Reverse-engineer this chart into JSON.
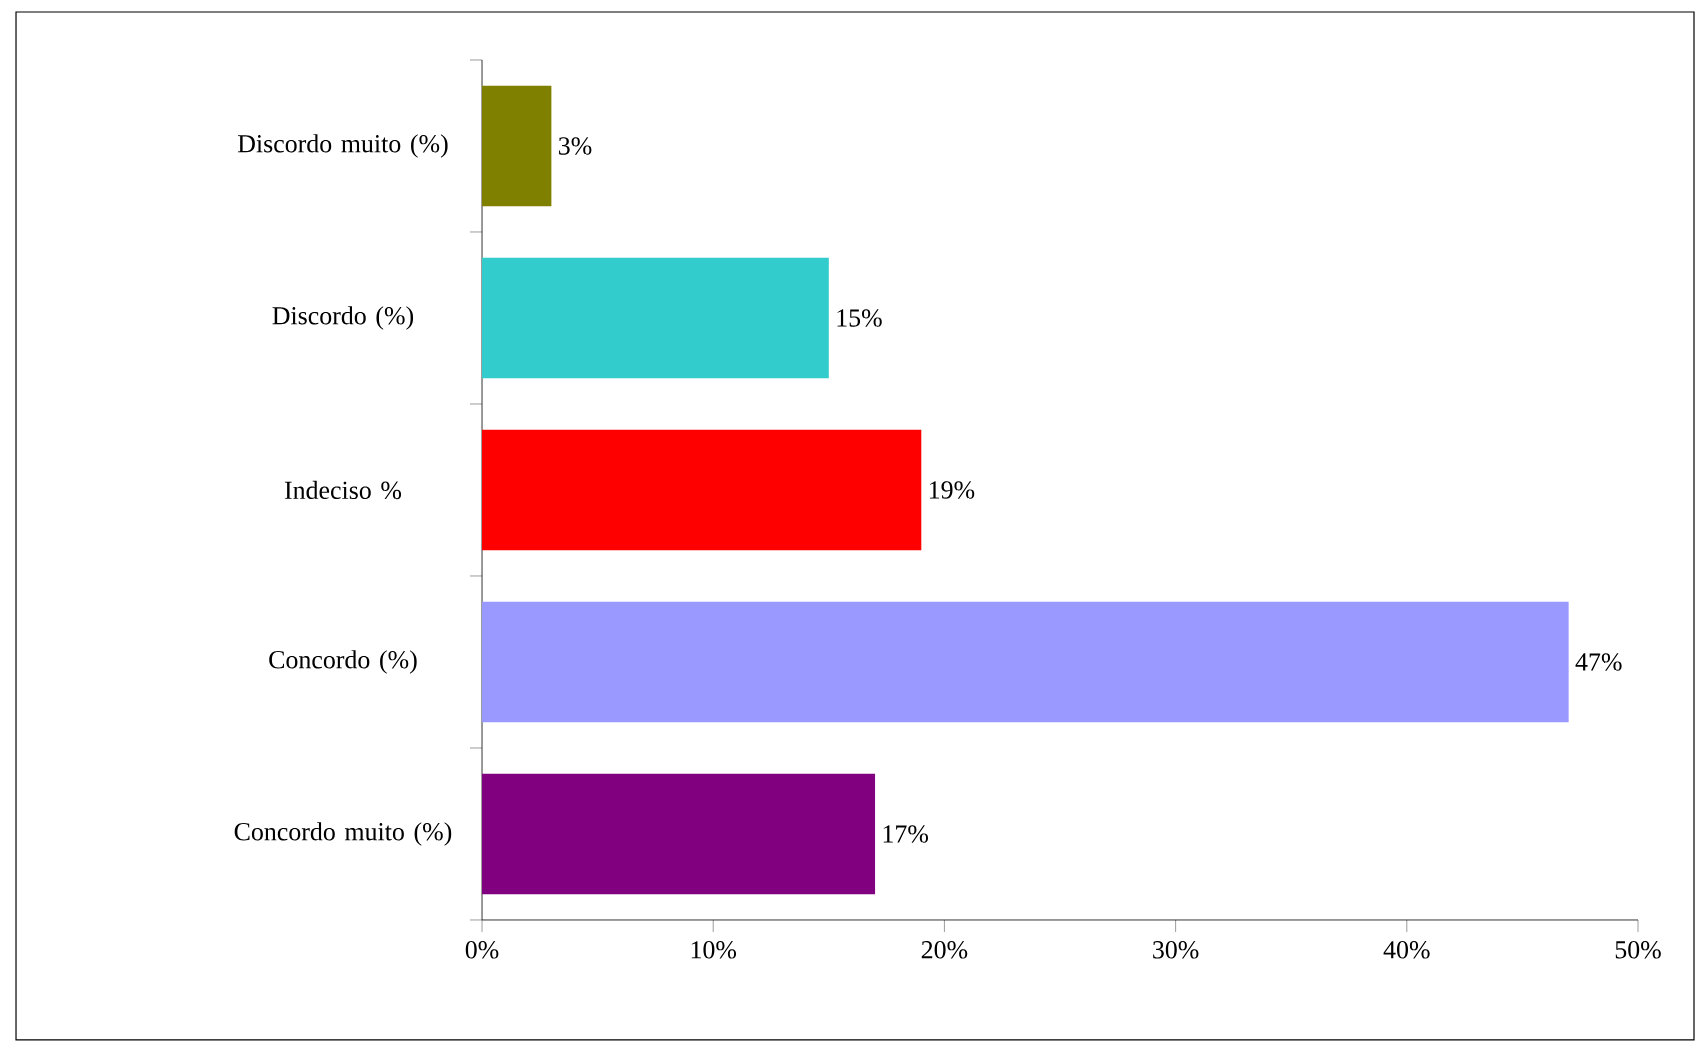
{
  "chart_data": {
    "type": "bar",
    "orientation": "horizontal",
    "categories": [
      "Discordo muito (%)",
      "Discordo (%)",
      "Indeciso %",
      "Concordo (%)",
      "Concordo muito (%)"
    ],
    "values": [
      3,
      15,
      19,
      47,
      17
    ],
    "colors": [
      "#808000",
      "#33cccc",
      "#ff0000",
      "#9999ff",
      "#800080"
    ],
    "value_labels": [
      "3%",
      "15%",
      "19%",
      "47%",
      "17%"
    ],
    "xlim": [
      0,
      50
    ],
    "xticks": [
      {
        "value": 0,
        "label": "0%"
      },
      {
        "value": 10,
        "label": "10%"
      },
      {
        "value": 20,
        "label": "20%"
      },
      {
        "value": 30,
        "label": "30%"
      },
      {
        "value": 40,
        "label": "40%"
      },
      {
        "value": 50,
        "label": "50%"
      }
    ],
    "grid": false
  }
}
